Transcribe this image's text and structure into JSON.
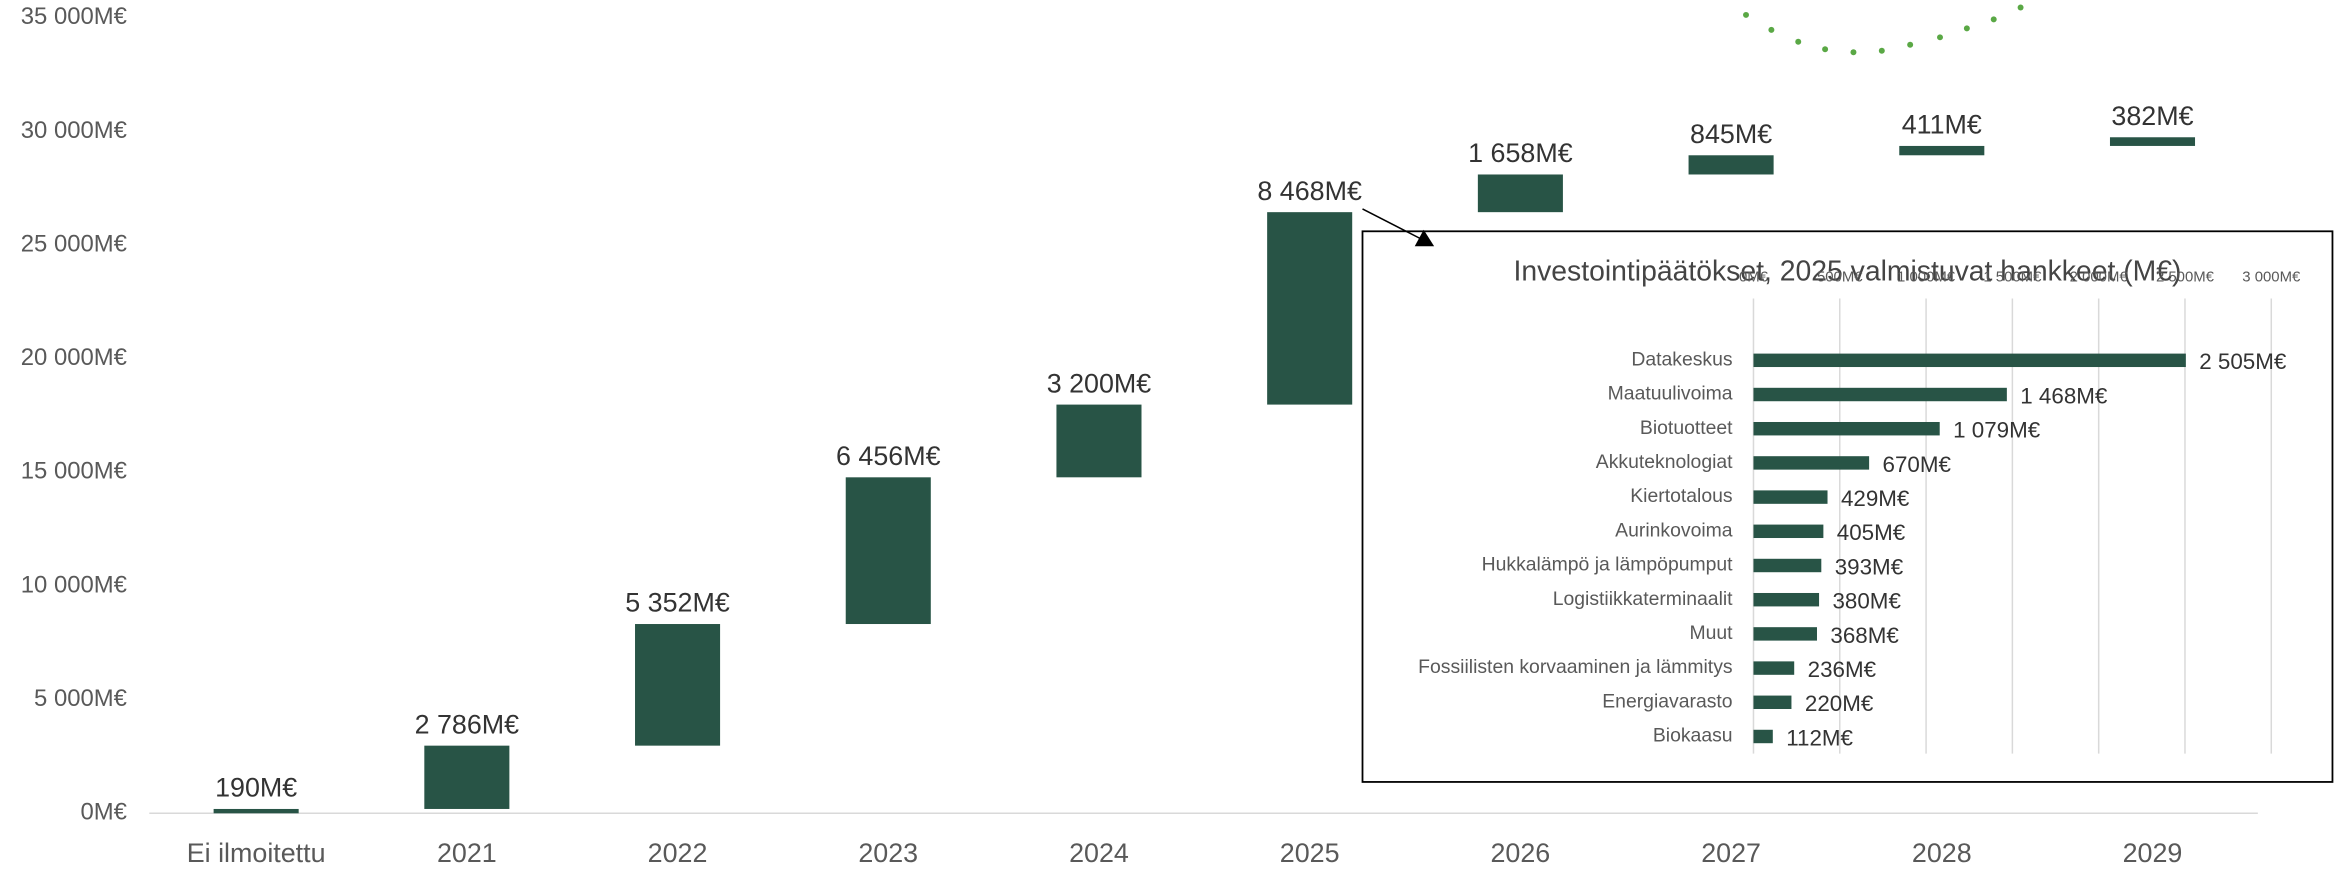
{
  "chart_data": [
    {
      "type": "waterfall",
      "categories": [
        "Ei ilmoitettu",
        "2021",
        "2022",
        "2023",
        "2024",
        "2025",
        "2026",
        "2027",
        "2028",
        "2029"
      ],
      "values": [
        190,
        2786,
        5352,
        6456,
        3200,
        8468,
        1658,
        845,
        411,
        382
      ],
      "value_labels": [
        "190M€",
        "2 786M€",
        "5 352M€",
        "6 456M€",
        "3 200M€",
        "8 468M€",
        "1 658M€",
        "845M€",
        "411M€",
        "382M€"
      ],
      "color": "#285446",
      "ylim": [
        0,
        35000
      ],
      "yticks": [
        {
          "value": 0,
          "label": "0M€"
        },
        {
          "value": 5000,
          "label": "5 000M€"
        },
        {
          "value": 10000,
          "label": "10 000M€"
        },
        {
          "value": 15000,
          "label": "15 000M€"
        },
        {
          "value": 20000,
          "label": "20 000M€"
        },
        {
          "value": 25000,
          "label": "25 000M€"
        },
        {
          "value": 30000,
          "label": "30 000M€"
        },
        {
          "value": 35000,
          "label": "35 000M€"
        }
      ],
      "grid": false
    },
    {
      "type": "hbar",
      "title": "Investointipäätökset, 2025 valmistuvat hankkeet (M€)",
      "categories": [
        "Datakeskus",
        "Maatuulivoima",
        "Biotuotteet",
        "Akkuteknologiat",
        "Kiertotalous",
        "Aurinkovoima",
        "Hukkalämpö ja lämpöpumput",
        "Logistiikkaterminaalit",
        "Muut",
        "Fossiilisten korvaaminen ja lämmitys",
        "Energiavarasto",
        "Biokaasu"
      ],
      "values": [
        2505,
        1468,
        1079,
        670,
        429,
        405,
        393,
        380,
        368,
        236,
        220,
        112
      ],
      "value_labels": [
        "2 505M€",
        "1 468M€",
        "1 079M€",
        "670M€",
        "429M€",
        "405M€",
        "393M€",
        "380M€",
        "368M€",
        "236M€",
        "220M€",
        "112M€"
      ],
      "color": "#285446",
      "xlim": [
        0,
        3000
      ],
      "xticks": [
        {
          "value": 0,
          "label": "0M€"
        },
        {
          "value": 500,
          "label": "500M€"
        },
        {
          "value": 1000,
          "label": "1 000M€"
        },
        {
          "value": 1500,
          "label": "1 500M€"
        },
        {
          "value": 2000,
          "label": "2 000M€"
        },
        {
          "value": 2500,
          "label": "2 500M€"
        },
        {
          "value": 3000,
          "label": "3 000M€"
        }
      ],
      "grid": true
    }
  ]
}
